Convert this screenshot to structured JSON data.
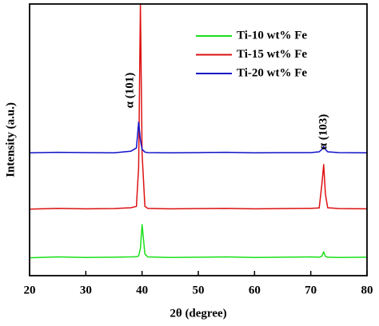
{
  "chart_data": {
    "type": "line",
    "xlabel": "2θ (degree)",
    "ylabel": "Intensity (a.u.)",
    "x": [
      20,
      25,
      30,
      35,
      38,
      39,
      39.4,
      39.7,
      40,
      40.5,
      41,
      45,
      50,
      55,
      60,
      65,
      70,
      71.5,
      72,
      72.3,
      72.6,
      73,
      75,
      80
    ],
    "series": [
      {
        "name": "Ti-10 wt% Fe",
        "color": "#19e019",
        "values": [
          6.6,
          6.9,
          6.7,
          6.8,
          6.9,
          7.0,
          7.2,
          10,
          18.8,
          8,
          6.9,
          6.7,
          6.8,
          6.9,
          6.7,
          6.8,
          6.9,
          6.8,
          7.2,
          8.8,
          7.1,
          6.8,
          6.7,
          6.8
        ]
      },
      {
        "name": "Ti-15 wt% Fe",
        "color": "#dd1111",
        "values": [
          24.5,
          24.8,
          24.6,
          24.7,
          25.0,
          25.5,
          40,
          100,
          45,
          25.5,
          24.8,
          24.6,
          24.7,
          24.8,
          24.6,
          24.7,
          24.8,
          24.9,
          34,
          40.9,
          30,
          25,
          24.7,
          24.6
        ]
      },
      {
        "name": "Ti-20 wt% Fe",
        "color": "#1111c8",
        "values": [
          45.2,
          45.4,
          45.3,
          45.2,
          45.8,
          47,
          56.5,
          50,
          46.5,
          45.5,
          45.3,
          45.2,
          45.3,
          45.4,
          45.2,
          45.3,
          45.3,
          45.6,
          46.5,
          47.6,
          46.5,
          45.6,
          45.3,
          45.2
        ]
      }
    ],
    "annotations": [
      "α (101)",
      "α (103)"
    ],
    "xlim": [
      20,
      80
    ],
    "xticks": [
      20,
      30,
      40,
      50,
      60,
      70,
      80
    ],
    "ylim": [
      0,
      100
    ],
    "legend": "upper right"
  }
}
